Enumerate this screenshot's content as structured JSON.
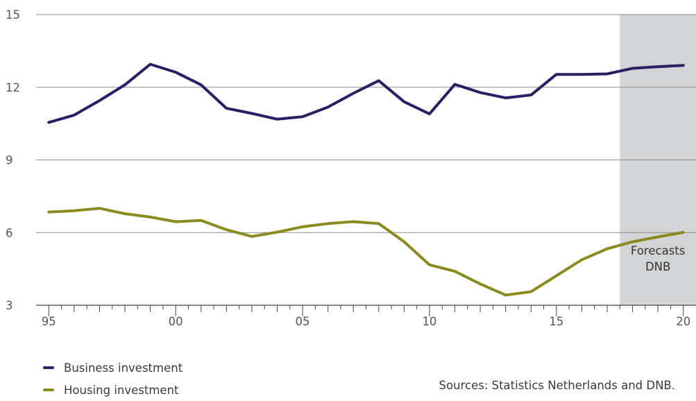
{
  "chart_data": {
    "type": "line",
    "x": [
      1995,
      1996,
      1997,
      1998,
      1999,
      2000,
      2001,
      2002,
      2003,
      2004,
      2005,
      2006,
      2007,
      2008,
      2009,
      2010,
      2011,
      2012,
      2013,
      2014,
      2015,
      2016,
      2017,
      2018,
      2019,
      2020
    ],
    "series": [
      {
        "name": "Business investment",
        "color": "#2a1f66",
        "values": [
          10.55,
          10.85,
          11.45,
          12.1,
          12.95,
          12.62,
          12.1,
          11.13,
          10.92,
          10.68,
          10.78,
          11.18,
          11.75,
          12.27,
          11.4,
          10.9,
          12.12,
          11.78,
          11.56,
          11.68,
          12.53,
          12.53,
          12.55,
          12.78,
          12.85,
          12.9
        ]
      },
      {
        "name": "Housing investment",
        "color": "#8c8a1e",
        "values": [
          6.85,
          6.9,
          7.0,
          6.78,
          6.64,
          6.45,
          6.5,
          6.12,
          5.84,
          6.02,
          6.24,
          6.37,
          6.45,
          6.37,
          5.62,
          4.67,
          4.4,
          3.88,
          3.42,
          3.56,
          4.22,
          4.88,
          5.33,
          5.62,
          5.82,
          6.01
        ]
      }
    ],
    "y_ticks": [
      "3",
      "6",
      "9",
      "12",
      "15"
    ],
    "x_tick_labels": [
      {
        "x": 1995,
        "label": "95"
      },
      {
        "x": 2000,
        "label": "00"
      },
      {
        "x": 2005,
        "label": "05"
      },
      {
        "x": 2010,
        "label": "10"
      },
      {
        "x": 2015,
        "label": "15"
      },
      {
        "x": 2020,
        "label": "20"
      }
    ],
    "ylim": [
      3,
      15
    ],
    "xlim": [
      1994.5,
      2020.5
    ],
    "forecast_start": 2017.5,
    "forecast_label": [
      "Forecasts",
      "DNB"
    ],
    "grid": "horizontal",
    "legend_position": "bottom-left",
    "colors": {
      "grid": "#8a8a8a",
      "axis": "#444444",
      "forecast_bg": "#d3d4d6",
      "tick_text": "#555555"
    }
  },
  "source": "Sources: Statistics Netherlands and DNB."
}
